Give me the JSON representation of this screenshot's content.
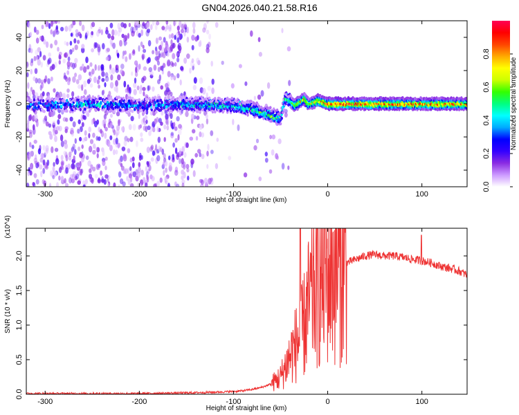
{
  "title": "GN04.2026.040.21.58.R16",
  "chart_data": [
    {
      "type": "heatmap",
      "xlabel": "Height of straight line (km)",
      "ylabel": "Frequency (Hz)",
      "xlim": [
        -320,
        148
      ],
      "ylim": [
        -50,
        50
      ],
      "xticks": [
        -300,
        -200,
        -100,
        0,
        100
      ],
      "yticks": [
        -40,
        -20,
        0,
        20,
        40
      ],
      "colorbar": {
        "label": "Normalized spectral amplitude",
        "range": [
          0,
          1
        ],
        "ticks": [
          "0.0",
          "0.2",
          "0.4",
          "0.6",
          "0.8"
        ],
        "colors": [
          "#ffffff",
          "#cc99ff",
          "#8a2be2",
          "#3300ff",
          "#0000ff",
          "#00aaff",
          "#00ffff",
          "#00ff80",
          "#33ff00",
          "#ccff00",
          "#ffff00",
          "#ffaa00",
          "#ff4400",
          "#ff0000",
          "#ff0055"
        ]
      },
      "ridge": {
        "x": [
          -320,
          -250,
          -200,
          -150,
          -100,
          -80,
          -70,
          -60,
          -55,
          -50,
          -45,
          -40,
          -35,
          -30,
          -25,
          -20,
          -10,
          0,
          20,
          50,
          100,
          148
        ],
        "freq": [
          -1,
          0,
          -1,
          0,
          -1,
          -3,
          -5,
          -7,
          -8,
          -9,
          4,
          2,
          -1,
          1,
          3,
          0,
          2,
          0,
          0,
          0,
          0,
          0
        ],
        "amplitude": [
          0.4,
          0.5,
          0.4,
          0.45,
          0.5,
          0.55,
          0.6,
          0.6,
          0.65,
          0.6,
          0.5,
          0.55,
          0.7,
          0.75,
          0.8,
          0.7,
          0.85,
          0.9,
          0.95,
          0.9,
          0.85,
          0.85
        ]
      }
    },
    {
      "type": "line",
      "xlabel": "Height of straight line (km)",
      "ylabel": "SNR (10 * v/v)",
      "yscale_label": "(x10^4)",
      "xlim": [
        -320,
        148
      ],
      "ylim": [
        0,
        2.4
      ],
      "xticks": [
        -300,
        -200,
        -100,
        0,
        100
      ],
      "yticks": [
        "0.0",
        "0.5",
        "1.0",
        "1.5",
        "2.0"
      ],
      "color": "#ee3333",
      "series": [
        {
          "x": [
            -320,
            -250,
            -200,
            -150,
            -120,
            -100,
            -90,
            -80,
            -70,
            -60,
            -50,
            -45,
            -40,
            -35,
            -30,
            -25,
            -20,
            -15,
            -10,
            -5,
            0,
            10,
            20,
            30,
            40,
            50,
            60,
            70,
            80,
            90,
            100,
            110,
            120,
            130,
            140,
            148
          ],
          "y": [
            0.01,
            0.01,
            0.01,
            0.02,
            0.03,
            0.04,
            0.05,
            0.07,
            0.1,
            0.15,
            0.25,
            0.4,
            0.55,
            0.7,
            0.8,
            1.0,
            1.3,
            1.5,
            1.6,
            1.7,
            1.75,
            1.85,
            1.9,
            1.95,
            2.0,
            2.02,
            2.0,
            2.0,
            1.98,
            1.95,
            1.93,
            1.9,
            1.85,
            1.82,
            1.78,
            1.72
          ]
        }
      ]
    }
  ]
}
